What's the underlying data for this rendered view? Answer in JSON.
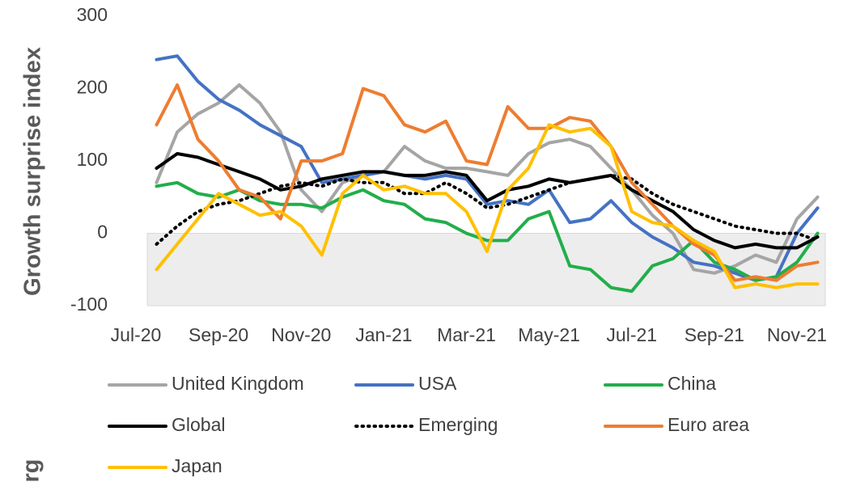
{
  "chart_data": {
    "type": "line",
    "y_axis_label": "Growth surprise index",
    "source_fragment": "rg",
    "categories": [
      "Jul-20",
      null,
      null,
      null,
      "Sep-20",
      null,
      null,
      null,
      "Nov-20",
      null,
      null,
      null,
      "Jan-21",
      null,
      null,
      null,
      "Mar-21",
      null,
      null,
      null,
      "May-21",
      null,
      null,
      null,
      "Jul-21",
      null,
      null,
      null,
      "Sep-21",
      null,
      null,
      null,
      "Nov-21",
      null
    ],
    "ylim": [
      -100,
      300
    ],
    "yticks": [
      -100,
      0,
      100,
      200,
      300
    ],
    "shade_below_zero": true,
    "grid": false,
    "series": [
      {
        "name": "United Kingdom",
        "color": "#a5a5a5",
        "dash": "solid",
        "values": [
          null,
          70,
          140,
          165,
          180,
          205,
          180,
          140,
          60,
          30,
          70,
          80,
          85,
          120,
          100,
          90,
          90,
          85,
          80,
          110,
          125,
          130,
          120,
          90,
          60,
          25,
          0,
          -50,
          -55,
          -45,
          -30,
          -40,
          20,
          50
        ]
      },
      {
        "name": "USA",
        "color": "#4472c4",
        "dash": "solid",
        "values": [
          null,
          240,
          245,
          210,
          185,
          170,
          150,
          135,
          120,
          70,
          75,
          80,
          85,
          80,
          75,
          80,
          75,
          40,
          45,
          40,
          60,
          15,
          20,
          45,
          15,
          -5,
          -20,
          -40,
          -45,
          -55,
          -65,
          -60,
          0,
          35
        ]
      },
      {
        "name": "China",
        "color": "#22ae4a",
        "dash": "solid",
        "values": [
          null,
          65,
          70,
          55,
          50,
          60,
          45,
          40,
          40,
          35,
          50,
          60,
          45,
          40,
          20,
          15,
          0,
          -10,
          -10,
          20,
          30,
          -45,
          -50,
          -75,
          -80,
          -45,
          -35,
          -10,
          -40,
          -50,
          -65,
          -60,
          -40,
          0
        ]
      },
      {
        "name": "Global",
        "color": "#000000",
        "dash": "solid",
        "values": [
          null,
          90,
          110,
          105,
          95,
          85,
          75,
          60,
          65,
          75,
          80,
          85,
          85,
          80,
          80,
          85,
          80,
          45,
          60,
          65,
          75,
          70,
          75,
          80,
          60,
          45,
          30,
          5,
          -10,
          -20,
          -15,
          -20,
          -20,
          -5
        ]
      },
      {
        "name": "Emerging",
        "color": "#000000",
        "dash": "dotted",
        "values": [
          null,
          -15,
          10,
          30,
          40,
          45,
          55,
          65,
          70,
          65,
          75,
          70,
          70,
          55,
          55,
          70,
          55,
          35,
          40,
          50,
          60,
          70,
          75,
          80,
          75,
          55,
          40,
          30,
          20,
          10,
          5,
          0,
          0,
          -10
        ]
      },
      {
        "name": "Euro area",
        "color": "#ed7d31",
        "dash": "solid",
        "values": [
          null,
          150,
          205,
          130,
          100,
          60,
          50,
          20,
          100,
          100,
          110,
          200,
          190,
          150,
          140,
          155,
          100,
          95,
          175,
          145,
          145,
          160,
          155,
          120,
          70,
          40,
          10,
          -15,
          -30,
          -65,
          -60,
          -65,
          -45,
          -40
        ]
      },
      {
        "name": "Japan",
        "color": "#ffc000",
        "dash": "solid",
        "values": [
          null,
          -50,
          -15,
          20,
          55,
          40,
          25,
          30,
          10,
          -30,
          55,
          80,
          60,
          65,
          55,
          55,
          30,
          -25,
          60,
          90,
          150,
          140,
          145,
          120,
          30,
          15,
          10,
          -10,
          -25,
          -75,
          -70,
          -75,
          -70,
          -70
        ]
      }
    ]
  }
}
